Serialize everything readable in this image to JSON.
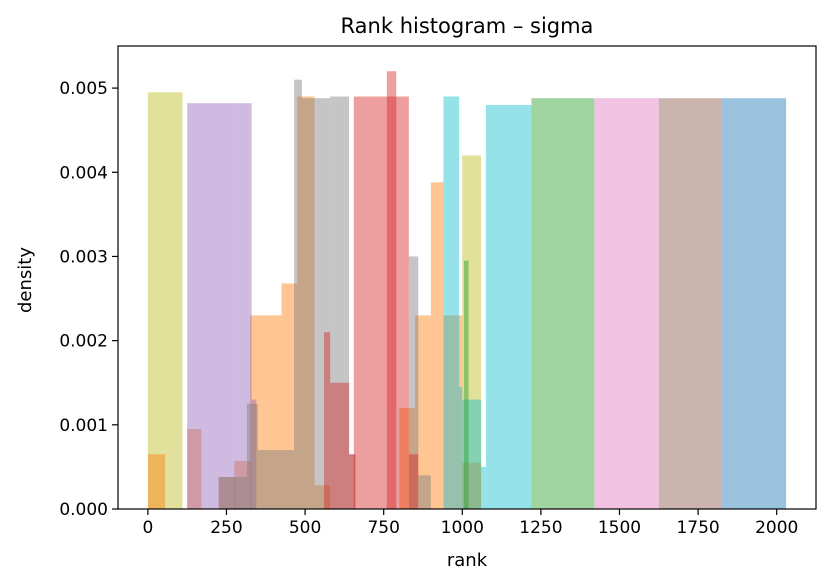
{
  "chart_data": {
    "type": "bar",
    "title": "Rank histogram – sigma",
    "xlabel": "rank",
    "ylabel": "density",
    "xlim": [
      -95,
      2125
    ],
    "ylim": [
      0,
      0.0055
    ],
    "xticks": [
      0,
      250,
      500,
      750,
      1000,
      1250,
      1500,
      1750,
      2000
    ],
    "xtick_labels": [
      "0",
      "250",
      "500",
      "750",
      "1000",
      "1250",
      "1500",
      "1750",
      "2000"
    ],
    "yticks": [
      0,
      0.001,
      0.002,
      0.003,
      0.004,
      0.005
    ],
    "ytick_labels": [
      "0.000",
      "0.001",
      "0.002",
      "0.003",
      "0.004",
      "0.005"
    ],
    "grid": false,
    "alpha": 0.45,
    "series": [
      {
        "color": "#bcbd22",
        "bars": [
          [
            0,
            110,
            0.00495
          ],
          [
            1000,
            1060,
            0.0042
          ]
        ]
      },
      {
        "color": "#ff7f0e",
        "bars": [
          [
            0,
            55,
            0.00065
          ],
          [
            125,
            170,
            0.00095
          ],
          [
            225,
            280,
            0.00038
          ],
          [
            275,
            330,
            0.00057
          ],
          [
            325,
            375,
            0.0023
          ],
          [
            375,
            425,
            0.0023
          ],
          [
            425,
            475,
            0.00268
          ],
          [
            475,
            530,
            0.0049
          ],
          [
            530,
            580,
            0.00028
          ],
          [
            800,
            850,
            0.0012
          ],
          [
            850,
            900,
            0.0023
          ],
          [
            900,
            940,
            0.00388
          ],
          [
            940,
            1000,
            0.0023
          ],
          [
            1000,
            1060,
            0.00055
          ]
        ]
      },
      {
        "color": "#9467bd",
        "bars": [
          [
            125,
            280,
            0.00482
          ],
          [
            280,
            330,
            0.00482
          ],
          [
            330,
            345,
            0.0013
          ]
        ]
      },
      {
        "color": "#7f7f7f",
        "bars": [
          [
            225,
            315,
            0.00038
          ],
          [
            315,
            350,
            0.00125
          ],
          [
            350,
            465,
            0.0007
          ],
          [
            465,
            490,
            0.0051
          ],
          [
            490,
            580,
            0.00488
          ],
          [
            580,
            640,
            0.0049
          ],
          [
            640,
            660,
            0.00065
          ],
          [
            660,
            830,
            0.0
          ],
          [
            830,
            860,
            0.003
          ],
          [
            860,
            900,
            0.0004
          ]
        ]
      },
      {
        "color": "#d62728",
        "bars": [
          [
            560,
            580,
            0.0021
          ],
          [
            580,
            640,
            0.0015
          ],
          [
            640,
            660,
            0.00065
          ],
          [
            655,
            830,
            0.0049
          ],
          [
            830,
            860,
            0.00065
          ],
          [
            760,
            790,
            0.0052
          ]
        ]
      },
      {
        "color": "#17becf",
        "bars": [
          [
            940,
            990,
            0.0049
          ],
          [
            990,
            1000,
            0.00145
          ],
          [
            1000,
            1060,
            0.0013
          ],
          [
            1060,
            1075,
            0.0005
          ],
          [
            1075,
            1220,
            0.0048
          ]
        ]
      },
      {
        "color": "#2ca02c",
        "bars": [
          [
            1005,
            1020,
            0.00295
          ],
          [
            1220,
            1420,
            0.00488
          ]
        ]
      },
      {
        "color": "#e377c2",
        "bars": [
          [
            1420,
            1625,
            0.00488
          ]
        ]
      },
      {
        "color": "#8c564b",
        "bars": [
          [
            1625,
            1825,
            0.00488
          ]
        ]
      },
      {
        "color": "#1f77b4",
        "bars": [
          [
            1825,
            2030,
            0.00488
          ]
        ]
      }
    ]
  }
}
